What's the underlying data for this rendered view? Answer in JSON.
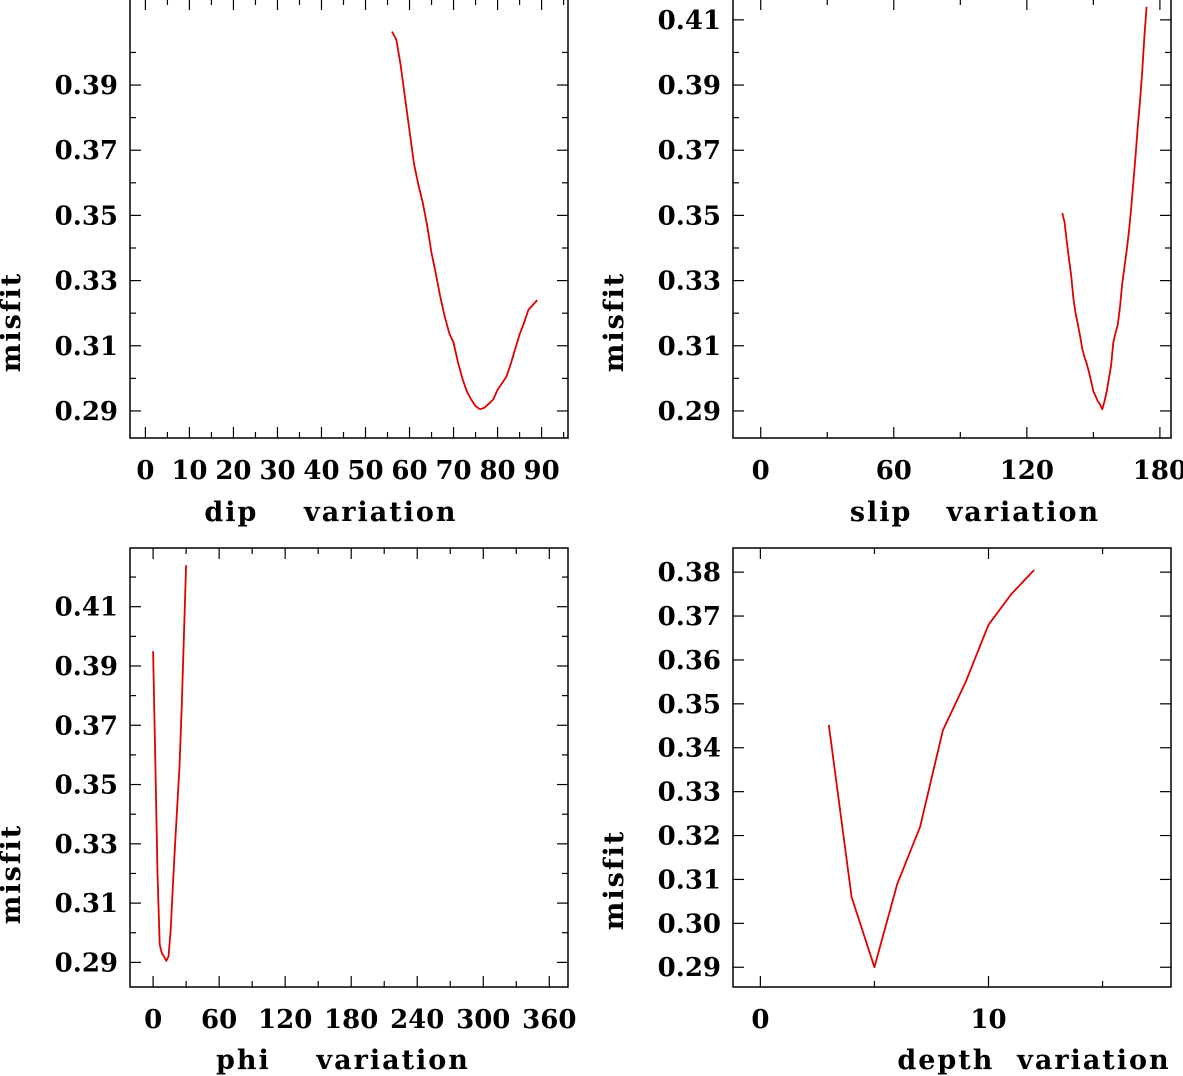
{
  "colors": {
    "series": "#e00000",
    "axes": "#000000",
    "background": "#ffffff"
  },
  "chart_data": [
    {
      "type": "line",
      "title": "",
      "xlabel": "dip    variation",
      "ylabel": "misfit",
      "xlim": [
        -3.5,
        96
      ],
      "ylim": [
        0.2817,
        0.4164
      ],
      "xticks": [
        0,
        10,
        20,
        30,
        40,
        50,
        60,
        70,
        80,
        90
      ],
      "xtick_labels": [
        "0",
        "10",
        "20",
        "30",
        "40",
        "50",
        "60",
        "70",
        "80",
        "90"
      ],
      "xminor": [
        5,
        15,
        25,
        35,
        45,
        55,
        65,
        75,
        85,
        95
      ],
      "yticks": [
        0.29,
        0.31,
        0.33,
        0.35,
        0.37,
        0.39
      ],
      "ytick_labels": [
        "0.29",
        "0.31",
        "0.33",
        "0.35",
        "0.37",
        "0.39"
      ],
      "yminor": [
        0.3,
        0.32,
        0.34,
        0.36,
        0.38,
        0.4
      ],
      "grid": false,
      "series": [
        {
          "x": [
            56,
            57,
            58,
            59,
            60,
            61,
            62,
            63,
            64,
            65,
            66,
            67,
            68,
            69,
            70,
            71,
            72,
            73,
            74,
            75,
            76,
            77,
            78,
            79,
            80,
            81,
            82,
            83,
            84,
            85,
            86,
            87,
            88,
            89
          ],
          "values": [
            0.4064,
            0.404,
            0.396,
            0.386,
            0.376,
            0.366,
            0.3595,
            0.354,
            0.347,
            0.3385,
            0.332,
            0.325,
            0.319,
            0.314,
            0.311,
            0.305,
            0.3,
            0.296,
            0.2935,
            0.2915,
            0.2905,
            0.291,
            0.2922,
            0.2935,
            0.2965,
            0.2985,
            0.3005,
            0.3045,
            0.309,
            0.3135,
            0.317,
            0.321,
            0.3225,
            0.324
          ]
        }
      ]
    },
    {
      "type": "line",
      "title": "",
      "xlabel": "slip   variation",
      "ylabel": "misfit",
      "xlim": [
        -12.5,
        185
      ],
      "ylim": [
        0.2817,
        0.4164
      ],
      "xticks": [
        0,
        60,
        120,
        180
      ],
      "xtick_labels": [
        "0",
        "60",
        "120",
        "180"
      ],
      "xminor": [
        30,
        90,
        150
      ],
      "yticks": [
        0.29,
        0.31,
        0.33,
        0.35,
        0.37,
        0.39,
        0.41
      ],
      "ytick_labels": [
        "0.29",
        "0.31",
        "0.33",
        "0.35",
        "0.37",
        "0.39",
        "0.41"
      ],
      "yminor": [
        0.3,
        0.32,
        0.34,
        0.36,
        0.38,
        0.4
      ],
      "grid": false,
      "series": [
        {
          "x": [
            136,
            137,
            138,
            139,
            140,
            141,
            142,
            143,
            144,
            145,
            146,
            147,
            148,
            149,
            150,
            151,
            152,
            153,
            154,
            155,
            156,
            157,
            158,
            159,
            160,
            161,
            162,
            163,
            164,
            165,
            166,
            167,
            168,
            169,
            170,
            171,
            172,
            173,
            174
          ],
          "values": [
            0.3507,
            0.348,
            0.342,
            0.3365,
            0.3315,
            0.3245,
            0.32,
            0.3165,
            0.313,
            0.309,
            0.3065,
            0.3045,
            0.302,
            0.299,
            0.296,
            0.2945,
            0.293,
            0.292,
            0.2905,
            0.293,
            0.296,
            0.3,
            0.304,
            0.311,
            0.314,
            0.3165,
            0.322,
            0.329,
            0.334,
            0.339,
            0.345,
            0.352,
            0.36,
            0.368,
            0.377,
            0.385,
            0.394,
            0.405,
            0.414
          ]
        }
      ]
    },
    {
      "type": "line",
      "title": "",
      "xlabel": "phi    variation",
      "ylabel": "misfit",
      "xlim": [
        -21,
        377
      ],
      "ylim": [
        0.2817,
        0.4298
      ],
      "xticks": [
        0,
        60,
        120,
        180,
        240,
        300,
        360
      ],
      "xtick_labels": [
        "0",
        "60",
        "120",
        "180",
        "240",
        "300",
        "360"
      ],
      "xminor": [
        30,
        90,
        150,
        210,
        270,
        330
      ],
      "yticks": [
        0.29,
        0.31,
        0.33,
        0.35,
        0.37,
        0.39,
        0.41
      ],
      "ytick_labels": [
        "0.29",
        "0.31",
        "0.33",
        "0.35",
        "0.37",
        "0.39",
        "0.41"
      ],
      "yminor": [
        0.3,
        0.32,
        0.34,
        0.36,
        0.38,
        0.4,
        0.42
      ],
      "grid": false,
      "series": [
        {
          "x": [
            0,
            2,
            4,
            6,
            8,
            10,
            12,
            14,
            16,
            18,
            20,
            22,
            24,
            26,
            28,
            30
          ],
          "values": [
            0.395,
            0.358,
            0.32,
            0.296,
            0.293,
            0.292,
            0.2905,
            0.292,
            0.301,
            0.316,
            0.33,
            0.343,
            0.356,
            0.376,
            0.4,
            0.424
          ]
        }
      ]
    },
    {
      "type": "line",
      "title": "",
      "xlabel": "depth  variation",
      "ylabel": "misfit",
      "xlim": [
        -1.2,
        18
      ],
      "ylim": [
        0.2855,
        0.3855
      ],
      "xticks": [
        0,
        10
      ],
      "xtick_labels": [
        "0",
        "10"
      ],
      "xminor": [
        5,
        15
      ],
      "yticks": [
        0.29,
        0.3,
        0.31,
        0.32,
        0.33,
        0.34,
        0.35,
        0.36,
        0.37,
        0.38
      ],
      "ytick_labels": [
        "0.29",
        "0.30",
        "0.31",
        "0.32",
        "0.33",
        "0.34",
        "0.35",
        "0.36",
        "0.37",
        "0.38"
      ],
      "yminor": [],
      "grid": false,
      "series": [
        {
          "x": [
            3,
            4,
            5,
            6,
            7,
            8,
            9,
            10,
            11,
            12
          ],
          "values": [
            0.3452,
            0.306,
            0.29,
            0.309,
            0.322,
            0.344,
            0.355,
            0.368,
            0.375,
            0.3805
          ]
        }
      ]
    }
  ]
}
